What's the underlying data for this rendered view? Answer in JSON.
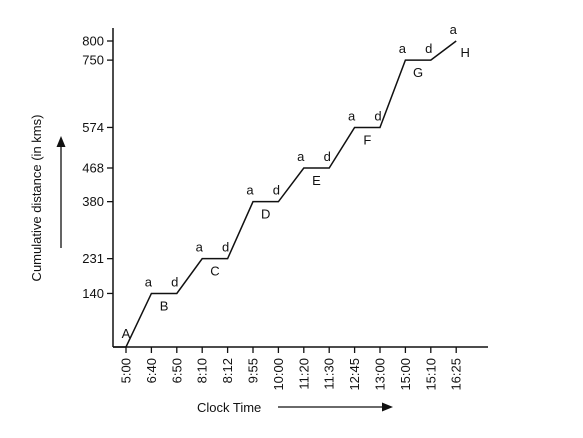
{
  "chart_data": {
    "type": "line",
    "xlabel": "Clock Time",
    "ylabel": "Cumulative distance (in kms)",
    "x": [
      "5:00",
      "6:40",
      "6:50",
      "8:10",
      "8:12",
      "9:55",
      "10:00",
      "11:20",
      "11:30",
      "12:45",
      "13:00",
      "15:00",
      "15:10",
      "16:25"
    ],
    "y_ticks": [
      140,
      231,
      380,
      468,
      574,
      750,
      800
    ],
    "ylim": [
      0,
      800
    ],
    "series": [
      {
        "values": [
          0,
          140,
          140,
          231,
          231,
          380,
          380,
          468,
          468,
          574,
          574,
          750,
          750,
          800
        ]
      }
    ],
    "stations": [
      {
        "label": "A",
        "index": 0
      },
      {
        "label": "B",
        "index": 1
      },
      {
        "label": "C",
        "index": 3
      },
      {
        "label": "D",
        "index": 5
      },
      {
        "label": "E",
        "index": 7
      },
      {
        "label": "F",
        "index": 9
      },
      {
        "label": "G",
        "index": 11
      },
      {
        "label": "H",
        "index": 13
      }
    ],
    "arrivals": {
      "label": "a",
      "indices": [
        1,
        3,
        5,
        7,
        9,
        11,
        13
      ]
    },
    "departures": {
      "label": "d",
      "indices": [
        2,
        4,
        6,
        8,
        10,
        12
      ]
    }
  }
}
